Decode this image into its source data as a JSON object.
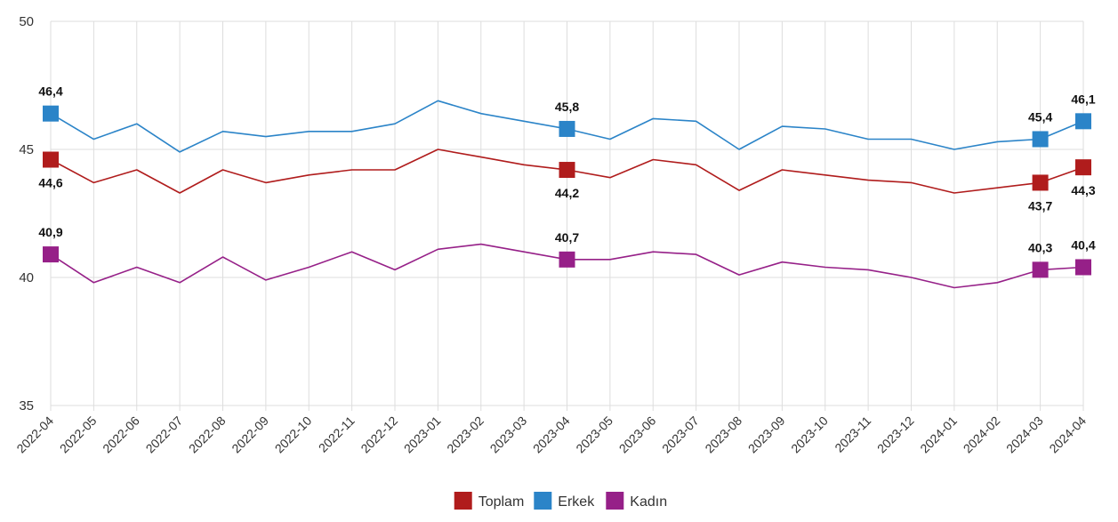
{
  "chart_data": {
    "type": "line",
    "categories": [
      "2022-04",
      "2022-05",
      "2022-06",
      "2022-07",
      "2022-08",
      "2022-09",
      "2022-10",
      "2022-11",
      "2022-12",
      "2023-01",
      "2023-02",
      "2023-03",
      "2023-04",
      "2023-05",
      "2023-06",
      "2023-07",
      "2023-08",
      "2023-09",
      "2023-10",
      "2023-11",
      "2023-12",
      "2024-01",
      "2024-02",
      "2024-03",
      "2024-04"
    ],
    "ylim": [
      35,
      50
    ],
    "yticks": [
      "35",
      "40",
      "45",
      "50"
    ],
    "grid": true,
    "legend_position": "bottom",
    "series": [
      {
        "name": "Toplam",
        "color": "#b01c1c",
        "values": [
          44.6,
          43.7,
          44.2,
          43.3,
          44.2,
          43.7,
          44.0,
          44.2,
          44.2,
          45.0,
          44.7,
          44.4,
          44.2,
          43.9,
          44.6,
          44.4,
          43.4,
          44.2,
          44.0,
          43.8,
          43.7,
          43.3,
          43.5,
          43.7,
          44.3
        ],
        "labels": [
          {
            "i": 0,
            "text": "44,6",
            "pos": "below"
          },
          {
            "i": 12,
            "text": "44,2",
            "pos": "below"
          },
          {
            "i": 23,
            "text": "43,7",
            "pos": "below"
          },
          {
            "i": 24,
            "text": "44,3",
            "pos": "below"
          }
        ]
      },
      {
        "name": "Erkek",
        "color": "#2b84c8",
        "values": [
          46.4,
          45.4,
          46.0,
          44.9,
          45.7,
          45.5,
          45.7,
          45.7,
          46.0,
          46.9,
          46.4,
          46.1,
          45.8,
          45.4,
          46.2,
          46.1,
          45.0,
          45.9,
          45.8,
          45.4,
          45.4,
          45.0,
          45.3,
          45.4,
          46.1
        ],
        "labels": [
          {
            "i": 0,
            "text": "46,4",
            "pos": "above"
          },
          {
            "i": 12,
            "text": "45,8",
            "pos": "above"
          },
          {
            "i": 23,
            "text": "45,4",
            "pos": "above"
          },
          {
            "i": 24,
            "text": "46,1",
            "pos": "above"
          }
        ]
      },
      {
        "name": "Kadın",
        "color": "#962088",
        "values": [
          40.9,
          39.8,
          40.4,
          39.8,
          40.8,
          39.9,
          40.4,
          41.0,
          40.3,
          41.1,
          41.3,
          41.0,
          40.7,
          40.7,
          41.0,
          40.9,
          40.1,
          40.6,
          40.4,
          40.3,
          40.0,
          39.6,
          39.8,
          40.3,
          40.4
        ],
        "labels": [
          {
            "i": 0,
            "text": "40,9",
            "pos": "above"
          },
          {
            "i": 12,
            "text": "40,7",
            "pos": "above"
          },
          {
            "i": 23,
            "text": "40,3",
            "pos": "above"
          },
          {
            "i": 24,
            "text": "40,4",
            "pos": "above"
          }
        ]
      }
    ]
  }
}
